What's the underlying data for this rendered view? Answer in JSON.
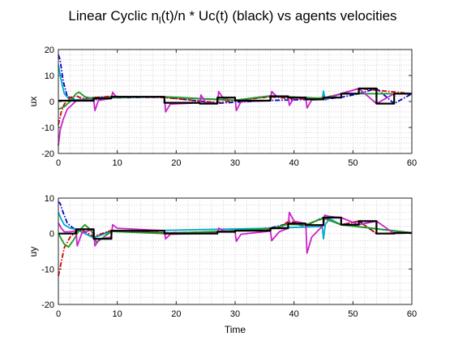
{
  "title_main": "Linear Cyclic   n",
  "title_sub": "l",
  "title_rest": "(t)/n * Uc(t) (black) vs agents velocities",
  "chart_data": [
    {
      "type": "line",
      "ylabel": "ux",
      "xlabel": "",
      "xlim": [
        0,
        60
      ],
      "ylim": [
        -20,
        20
      ],
      "xticks": [
        0,
        10,
        20,
        30,
        40,
        50,
        60
      ],
      "yticks": [
        -20,
        -10,
        0,
        10,
        20
      ],
      "grid": "dotted",
      "series": [
        {
          "color": "#000000",
          "style": "solid",
          "x": [
            0,
            6,
            6,
            9,
            9,
            18,
            18,
            24,
            24,
            27,
            27,
            30,
            30,
            36,
            36,
            39,
            39,
            42,
            42,
            45,
            45,
            48,
            48,
            51,
            51,
            54,
            54,
            57,
            57,
            60
          ],
          "y": [
            0.3,
            0.3,
            1.2,
            1.2,
            1.8,
            1.8,
            -0.5,
            -0.5,
            -0.8,
            -0.8,
            1.5,
            1.5,
            0.3,
            0.3,
            2.0,
            2.0,
            1.5,
            1.5,
            0.8,
            0.8,
            1.5,
            1.5,
            3.0,
            3.0,
            5.0,
            5.0,
            -0.8,
            -0.8,
            3.0,
            3.0
          ]
        },
        {
          "color": "#0000cc",
          "style": "dashdot",
          "x": [
            0,
            0.3,
            0.8,
            1.5,
            3,
            6,
            9,
            18,
            27,
            36,
            45,
            48,
            51,
            54,
            57,
            60
          ],
          "y": [
            18,
            16,
            8,
            2,
            0.5,
            0.6,
            1.4,
            1.7,
            -0.7,
            0.4,
            0.9,
            1.6,
            3.0,
            5.0,
            -0.8,
            3.0
          ]
        },
        {
          "color": "#00aacc",
          "style": "solid",
          "x": [
            0,
            0.4,
            1,
            2,
            4,
            6,
            9,
            18,
            30,
            36,
            44.8,
            45,
            45.3,
            46,
            48,
            60
          ],
          "y": [
            14,
            9,
            3,
            0.5,
            0.8,
            1.5,
            1.8,
            1.7,
            0.4,
            2.0,
            0.8,
            4.0,
            0.6,
            1.2,
            3.0,
            3.0
          ]
        },
        {
          "color": "#cc0000",
          "style": "dashdot",
          "x": [
            0,
            0.5,
            1,
            2,
            3,
            4,
            6,
            9,
            18,
            27,
            36,
            39,
            42,
            45,
            48,
            51,
            60
          ],
          "y": [
            -9,
            -4,
            -1,
            1.5,
            2.2,
            1.2,
            1.5,
            2.0,
            1.5,
            -0.4,
            1.8,
            1.2,
            1.0,
            1.4,
            3.0,
            5.0,
            3.0
          ]
        },
        {
          "color": "#229922",
          "style": "solid",
          "x": [
            0,
            1,
            2,
            3,
            3.5,
            4.5,
            6,
            9,
            18,
            30,
            36,
            39,
            45,
            48,
            60
          ],
          "y": [
            -3,
            -2,
            0,
            3,
            3.6,
            1.8,
            1.0,
            1.5,
            1.8,
            0.5,
            2.2,
            1.8,
            1.2,
            3.0,
            3.0
          ]
        },
        {
          "color": "#cc22cc",
          "style": "solid",
          "x": [
            0,
            0.3,
            0.8,
            1.5,
            3,
            4,
            6,
            6.2,
            6.8,
            9,
            9.2,
            9.8,
            18,
            18.2,
            19,
            24,
            24.2,
            25,
            27,
            27.2,
            28,
            30,
            30.2,
            31,
            36,
            36.2,
            37,
            39,
            39.2,
            40,
            42,
            42.2,
            43,
            45,
            48,
            51,
            54,
            57,
            60
          ],
          "y": [
            -17,
            -11,
            -7,
            -3,
            0.2,
            0.6,
            0.5,
            -3.5,
            0.4,
            1.2,
            3.5,
            1.8,
            1.8,
            -4.0,
            -1.0,
            -0.5,
            2.5,
            -0.4,
            -0.8,
            3.8,
            1.2,
            1.5,
            -3.5,
            0.0,
            0.3,
            3.8,
            2.1,
            2.0,
            -1.5,
            1.4,
            1.5,
            -2.5,
            0.6,
            0.8,
            3.0,
            5.0,
            -0.8,
            3.0,
            3.0
          ]
        }
      ]
    },
    {
      "type": "line",
      "ylabel": "uy",
      "xlabel": "Time",
      "xlim": [
        0,
        60
      ],
      "ylim": [
        -20,
        10
      ],
      "xticks": [
        0,
        10,
        20,
        30,
        40,
        50,
        60
      ],
      "yticks": [
        -20,
        -10,
        0,
        10
      ],
      "grid": "dotted",
      "series": [
        {
          "color": "#000000",
          "style": "solid",
          "x": [
            0,
            3,
            3,
            6,
            6,
            9,
            9,
            18,
            18,
            27,
            27,
            30,
            30,
            36,
            36,
            39,
            39,
            42,
            42,
            45,
            45,
            48,
            48,
            51,
            51,
            54,
            54,
            57,
            57,
            60
          ],
          "y": [
            0,
            0,
            1.2,
            1.2,
            -1.5,
            -1.5,
            0.8,
            0.8,
            0,
            0,
            0.5,
            0.5,
            0.8,
            0.8,
            1.5,
            1.5,
            2.8,
            2.8,
            2.4,
            2.4,
            4.5,
            4.5,
            2.5,
            2.5,
            3.5,
            3.5,
            0,
            0,
            0.2,
            0.2
          ]
        },
        {
          "color": "#0000cc",
          "style": "dashdot",
          "x": [
            0,
            0.3,
            0.8,
            1.5,
            2.5,
            3,
            6,
            9,
            18,
            27,
            36,
            39,
            42,
            45,
            48,
            51,
            54,
            60
          ],
          "y": [
            9,
            8.5,
            6,
            3,
            1.5,
            1.3,
            -1.2,
            0.8,
            0.1,
            0.5,
            1.6,
            2.8,
            2.2,
            4.6,
            2.5,
            3.5,
            0,
            0.2
          ]
        },
        {
          "color": "#00aacc",
          "style": "solid",
          "x": [
            0,
            0.5,
            1,
            2,
            3,
            6,
            9,
            36,
            44.8,
            45,
            45.3,
            46,
            48,
            60
          ],
          "y": [
            6,
            4,
            2.5,
            1.5,
            1.2,
            -1.2,
            0.6,
            1.5,
            2.0,
            -1.5,
            2.5,
            4.2,
            2.5,
            0.2
          ]
        },
        {
          "color": "#cc0000",
          "style": "dashdot",
          "x": [
            0,
            0.5,
            1,
            2,
            3,
            4,
            6,
            9,
            18,
            27,
            36,
            38,
            39,
            42,
            45,
            48,
            51,
            54,
            60
          ],
          "y": [
            -12,
            -8,
            -4,
            -1,
            0.5,
            1.0,
            -0.8,
            0.9,
            0.2,
            0.5,
            1.2,
            2.0,
            3.5,
            2.4,
            4.3,
            2.5,
            3.5,
            0,
            0.2
          ]
        },
        {
          "color": "#229922",
          "style": "solid",
          "x": [
            0,
            1,
            1.7,
            2.5,
            3.5,
            4.5,
            5.5,
            6,
            6.5,
            9,
            18,
            27,
            36,
            39,
            42,
            45,
            48,
            60
          ],
          "y": [
            0,
            -3,
            -3.8,
            -2,
            0.8,
            2.5,
            1.0,
            -0.5,
            -2.5,
            0.6,
            0.0,
            0.6,
            1.4,
            2.6,
            2.5,
            4.4,
            2.5,
            0.2
          ]
        },
        {
          "color": "#cc22cc",
          "style": "solid",
          "x": [
            0,
            0.5,
            1,
            2,
            3,
            3.2,
            4,
            6,
            6.2,
            7,
            9,
            9.2,
            10,
            18,
            18.2,
            19,
            27,
            27.2,
            28,
            30,
            30.2,
            31,
            36,
            36.2,
            37.5,
            39,
            39.2,
            40,
            41.5,
            42,
            42.2,
            43,
            45,
            45.2,
            46,
            48,
            51,
            54,
            57,
            60
          ],
          "y": [
            3,
            1.5,
            0.5,
            0.5,
            0.8,
            -3.5,
            0.2,
            1.2,
            -3.5,
            -1.5,
            -1.0,
            2.5,
            1.5,
            0.8,
            -1.5,
            -0.2,
            0.1,
            1.5,
            0.8,
            0.5,
            -2.2,
            -0.2,
            0.7,
            -2.0,
            0.5,
            1.5,
            6.0,
            3.5,
            3.0,
            2.8,
            -5.5,
            -1.0,
            2.4,
            5.2,
            4.8,
            4.5,
            2.5,
            3.5,
            0,
            0.2
          ]
        }
      ]
    }
  ]
}
